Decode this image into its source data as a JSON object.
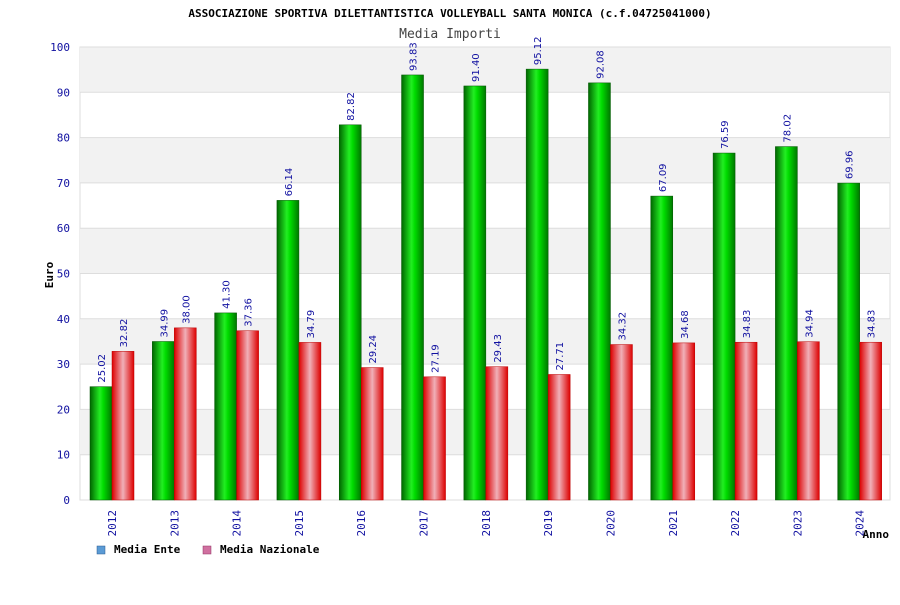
{
  "chart_data": {
    "type": "bar",
    "title": "ASSOCIAZIONE SPORTIVA DILETTANTISTICA VOLLEYBALL SANTA MONICA (c.f.04725041000)",
    "subtitle": "Media Importi",
    "xlabel": "Anno",
    "ylabel": "Euro",
    "ylim": [
      0,
      100
    ],
    "yticks": [
      0,
      10,
      20,
      30,
      40,
      50,
      60,
      70,
      80,
      90,
      100
    ],
    "categories": [
      "2012",
      "2013",
      "2014",
      "2015",
      "2016",
      "2017",
      "2018",
      "2019",
      "2020",
      "2021",
      "2022",
      "2023",
      "2024"
    ],
    "series": [
      {
        "name": "Media Ente",
        "color": "#00cc00",
        "legend_color": "#5b9bd5",
        "values": [
          25.02,
          34.99,
          41.3,
          66.14,
          82.82,
          93.83,
          91.4,
          95.12,
          92.08,
          67.09,
          76.59,
          78.02,
          69.96
        ],
        "labels": [
          "25.02",
          "34.99",
          "41.30",
          "66.14",
          "82.82",
          "93.83",
          "91.40",
          "95.12",
          "92.08",
          "67.09",
          "76.59",
          "78.02",
          "69.96"
        ]
      },
      {
        "name": "Media Nazionale",
        "color": "#ee1111",
        "legend_color": "#d070a0",
        "values": [
          32.82,
          38.0,
          37.36,
          34.79,
          29.24,
          27.19,
          29.43,
          27.71,
          34.32,
          34.68,
          34.83,
          34.94,
          34.83
        ],
        "labels": [
          "32.82",
          "38.00",
          "37.36",
          "34.79",
          "29.24",
          "27.19",
          "29.43",
          "27.71",
          "34.32",
          "34.68",
          "34.83",
          "34.94",
          "34.83"
        ]
      }
    ],
    "grid": true,
    "legend_position": "bottom-left"
  }
}
